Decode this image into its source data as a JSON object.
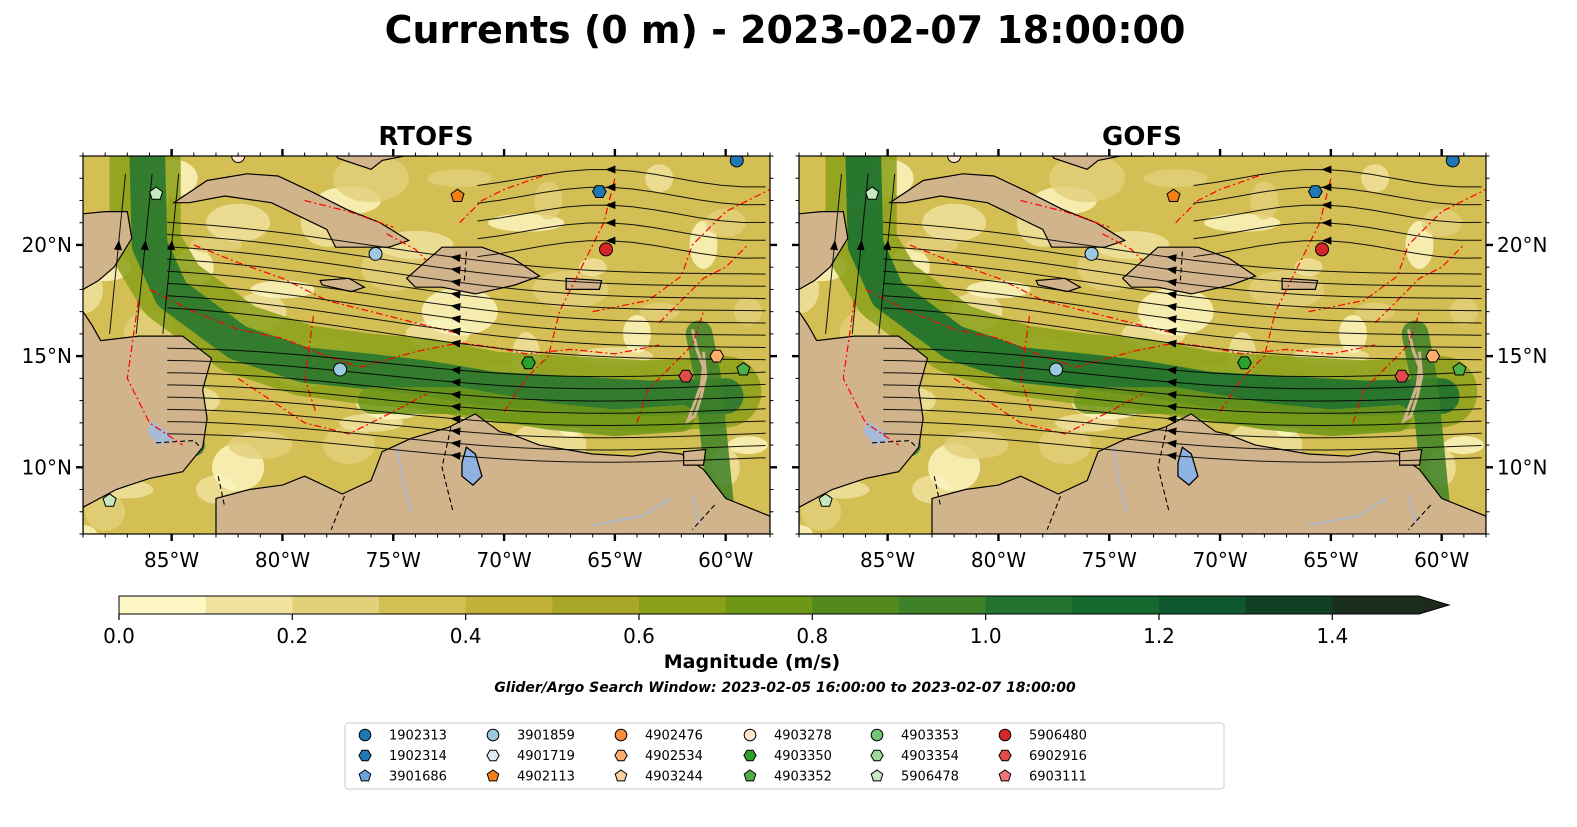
{
  "figure": {
    "title": "Currents (0 m) - 2023-02-07 18:00:00"
  },
  "colors": {
    "land": "#d2b48c",
    "lake": "#8fb2e3",
    "eez": "#ff0000",
    "border": "#000000",
    "river": "#a8bbd6",
    "streamline": "#000000"
  },
  "chart_data": {
    "type": "heatmap",
    "variable": "Currents (0 m)",
    "valid_time": "2023-02-07 18:00:00",
    "panels": [
      {
        "title": "RTOFS",
        "xlim": [
          -89,
          -58
        ],
        "ylim": [
          7,
          24
        ],
        "xticks": [
          "85°W",
          "80°W",
          "75°W",
          "70°W",
          "65°W",
          "60°W"
        ],
        "xtick_values": [
          -85,
          -80,
          -75,
          -70,
          -65,
          -60
        ],
        "yticks": [
          "20°N",
          "15°N",
          "10°N"
        ],
        "ytick_values": [
          20,
          15,
          10
        ],
        "ytick_side": "left",
        "markers": [
          {
            "id": "1902313",
            "lon": -59.5,
            "lat": 23.8
          },
          {
            "id": "4903278",
            "lon": -82.0,
            "lat": 24.0
          },
          {
            "id": "5906478",
            "lon": -85.7,
            "lat": 22.3
          },
          {
            "id": "4902113",
            "lon": -72.1,
            "lat": 22.2
          },
          {
            "id": "1902314",
            "lon": -65.7,
            "lat": 22.4
          },
          {
            "id": "3901859",
            "lon": -75.8,
            "lat": 19.6
          },
          {
            "id": "5906480",
            "lon": -65.4,
            "lat": 19.8
          },
          {
            "id": "3901859",
            "lon": -77.4,
            "lat": 14.4
          },
          {
            "id": "4903350",
            "lon": -68.9,
            "lat": 14.7
          },
          {
            "id": "4902534",
            "lon": -60.4,
            "lat": 15.0
          },
          {
            "id": "6902916",
            "lon": -61.8,
            "lat": 14.1
          },
          {
            "id": "4903352",
            "lon": -59.2,
            "lat": 14.4
          },
          {
            "id": "5906478",
            "lon": -87.8,
            "lat": 8.5
          }
        ]
      },
      {
        "title": "GOFS",
        "xlim": [
          -89,
          -58
        ],
        "ylim": [
          7,
          24
        ],
        "xticks": [
          "85°W",
          "80°W",
          "75°W",
          "70°W",
          "65°W",
          "60°W"
        ],
        "xtick_values": [
          -85,
          -80,
          -75,
          -70,
          -65,
          -60
        ],
        "yticks": [
          "20°N",
          "15°N",
          "10°N"
        ],
        "ytick_values": [
          20,
          15,
          10
        ],
        "ytick_side": "right",
        "markers": [
          {
            "id": "1902313",
            "lon": -59.5,
            "lat": 23.8
          },
          {
            "id": "4903278",
            "lon": -82.0,
            "lat": 24.0
          },
          {
            "id": "5906478",
            "lon": -85.7,
            "lat": 22.3
          },
          {
            "id": "4902113",
            "lon": -72.1,
            "lat": 22.2
          },
          {
            "id": "1902314",
            "lon": -65.7,
            "lat": 22.4
          },
          {
            "id": "3901859",
            "lon": -75.8,
            "lat": 19.6
          },
          {
            "id": "5906480",
            "lon": -65.4,
            "lat": 19.8
          },
          {
            "id": "3901859",
            "lon": -77.4,
            "lat": 14.4
          },
          {
            "id": "4903350",
            "lon": -68.9,
            "lat": 14.7
          },
          {
            "id": "4902534",
            "lon": -60.4,
            "lat": 15.0
          },
          {
            "id": "6902916",
            "lon": -61.8,
            "lat": 14.1
          },
          {
            "id": "4903352",
            "lon": -59.2,
            "lat": 14.4
          },
          {
            "id": "5906478",
            "lon": -87.8,
            "lat": 8.5
          }
        ]
      }
    ],
    "colorbar": {
      "label": "Magnitude (m/s)",
      "range": [
        0.0,
        1.5
      ],
      "extend": "max",
      "ticks": [
        "0.0",
        "0.2",
        "0.4",
        "0.6",
        "0.8",
        "1.0",
        "1.2",
        "1.4"
      ],
      "tick_values": [
        0.0,
        0.2,
        0.4,
        0.6,
        0.8,
        1.0,
        1.2,
        1.4
      ],
      "level_step": 0.1,
      "colors": [
        "#fdf8c4",
        "#f0e3a0",
        "#e2d07a",
        "#d4bf55",
        "#c2b239",
        "#a9a72a",
        "#8aa019",
        "#6f9717",
        "#528a1f",
        "#3d8128",
        "#22732f",
        "#15692f",
        "#0f572c",
        "#113f24",
        "#1a2e1d",
        "#1c2b1a"
      ]
    },
    "note": "Glider/Argo Search Window: 2023-02-05 16:00:00 to 2023-02-07 18:00:00",
    "legend": {
      "placement": "bottom",
      "columns": 7,
      "entries": [
        {
          "label": "1902313",
          "marker": "circle",
          "color": "#1f77b4"
        },
        {
          "label": "1902314",
          "marker": "hexagon",
          "color": "#1f77b4"
        },
        {
          "label": "3901686",
          "marker": "pentagon",
          "color": "#6aa4da"
        },
        {
          "label": "3901859",
          "marker": "circle",
          "color": "#9ecae1"
        },
        {
          "label": "4901719",
          "marker": "hexagon",
          "color": "#deebf7"
        },
        {
          "label": "4902113",
          "marker": "pentagon",
          "color": "#f57f17"
        },
        {
          "label": "4902476",
          "marker": "circle",
          "color": "#fd8d3c"
        },
        {
          "label": "4902534",
          "marker": "hexagon",
          "color": "#fdae6b"
        },
        {
          "label": "4903244",
          "marker": "pentagon",
          "color": "#fdd0a2"
        },
        {
          "label": "4903278",
          "marker": "circle",
          "color": "#fee6ce"
        },
        {
          "label": "4903350",
          "marker": "hexagon",
          "color": "#2ca02c"
        },
        {
          "label": "4903352",
          "marker": "pentagon",
          "color": "#4daf4a"
        },
        {
          "label": "4903353",
          "marker": "circle",
          "color": "#74c476"
        },
        {
          "label": "4903354",
          "marker": "hexagon",
          "color": "#a1d99b"
        },
        {
          "label": "5906478",
          "marker": "pentagon",
          "color": "#c7e9c0"
        },
        {
          "label": "5906480",
          "marker": "circle",
          "color": "#d62728"
        },
        {
          "label": "6902916",
          "marker": "hexagon",
          "color": "#e34a4a"
        },
        {
          "label": "6903111",
          "marker": "pentagon",
          "color": "#f0767b"
        }
      ]
    }
  }
}
